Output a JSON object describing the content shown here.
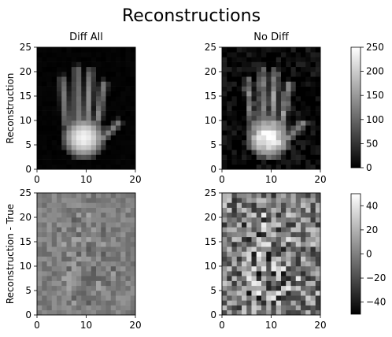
{
  "figure": {
    "title": "Reconstructions"
  },
  "chart_data": [
    {
      "type": "heatmap",
      "title": "Diff All",
      "ylabel": "Reconstruction",
      "xlabel": "",
      "xlim": [
        0,
        20
      ],
      "ylim": [
        0,
        25
      ],
      "xticks": [
        0,
        10,
        20
      ],
      "yticks": [
        0,
        5,
        10,
        15,
        20,
        25
      ],
      "grid_size": [
        20,
        25
      ],
      "colormap": "gray",
      "color_range": [
        0,
        250
      ],
      "content": "grayscale image of an open hand, fingers pointing up; brightest (~230) near the palm around x=10, y=4; dark background",
      "grid": false
    },
    {
      "type": "heatmap",
      "title": "No Diff",
      "ylabel": "",
      "xlabel": "",
      "xlim": [
        0,
        20
      ],
      "ylim": [
        0,
        25
      ],
      "xticks": [
        0,
        10,
        20
      ],
      "yticks": [
        0,
        5,
        10,
        15,
        20,
        25
      ],
      "grid_size": [
        20,
        25
      ],
      "colormap": "gray",
      "color_range": [
        0,
        250
      ],
      "content": "same hand image with visible per-pixel noise in the background",
      "grid": false
    },
    {
      "type": "heatmap",
      "title": "",
      "ylabel": "Reconstruction - True",
      "xlabel": "",
      "xlim": [
        0,
        20
      ],
      "ylim": [
        0,
        25
      ],
      "xticks": [
        0,
        10,
        20
      ],
      "yticks": [
        0,
        5,
        10,
        15,
        20,
        25
      ],
      "grid_size": [
        20,
        25
      ],
      "colormap": "gray",
      "color_range": [
        -50,
        50
      ],
      "content": "residual map, small amplitude noise (roughly -15 to +15), slightly stronger near the hand",
      "grid": false
    },
    {
      "type": "heatmap",
      "title": "",
      "ylabel": "",
      "xlabel": "",
      "xlim": [
        0,
        20
      ],
      "ylim": [
        0,
        25
      ],
      "xticks": [
        0,
        10,
        20
      ],
      "yticks": [
        0,
        5,
        10,
        15,
        20,
        25
      ],
      "grid_size": [
        20,
        25
      ],
      "colormap": "gray",
      "color_range": [
        -50,
        50
      ],
      "content": "residual map, larger amplitude noise (roughly -50 to +50) across the whole frame",
      "grid": false
    }
  ],
  "colorbars": [
    {
      "ticks": [
        0,
        50,
        100,
        150,
        200,
        250
      ],
      "range": [
        0,
        250
      ]
    },
    {
      "ticks": [
        -40,
        -20,
        0,
        20,
        40
      ],
      "range": [
        -50,
        50
      ]
    }
  ]
}
